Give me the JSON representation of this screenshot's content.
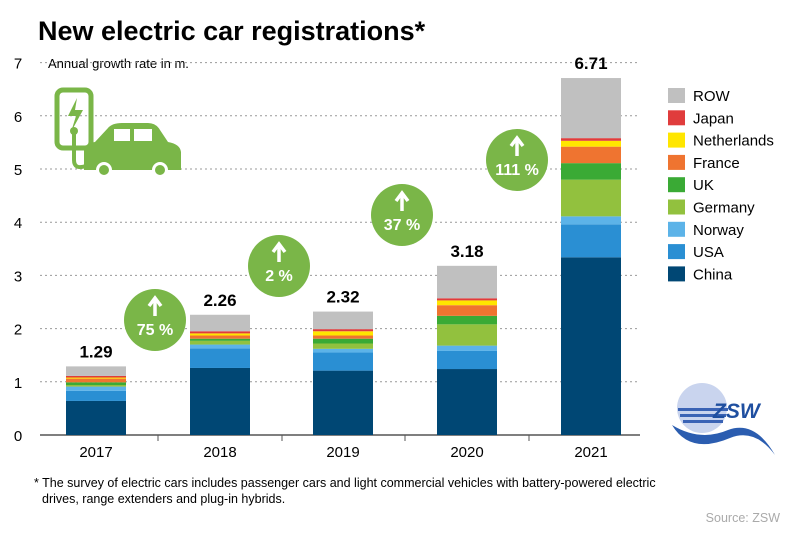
{
  "chart_data": {
    "type": "bar",
    "stacked": true,
    "title": "New electric car registrations*",
    "ylabel": "Annual growth rate in m.",
    "ylim": [
      0,
      7
    ],
    "yticks": [
      "0",
      "1",
      "2",
      "3",
      "4",
      "5",
      "6",
      "7"
    ],
    "grid": true,
    "legend_position": "right",
    "categories": [
      "2017",
      "2018",
      "2019",
      "2020",
      "2021"
    ],
    "totals": [
      "1.29",
      "2.26",
      "2.32",
      "3.18",
      "6.71"
    ],
    "growth": [
      "75 %",
      "2 %",
      "37 %",
      "111 %"
    ],
    "series": [
      {
        "name": "China",
        "color": "#004774",
        "values": [
          0.64,
          1.26,
          1.21,
          1.24,
          3.34
        ]
      },
      {
        "name": "USA",
        "color": "#2a8fd3",
        "values": [
          0.19,
          0.37,
          0.34,
          0.34,
          0.62
        ]
      },
      {
        "name": "Norway",
        "color": "#5cb3e8",
        "values": [
          0.08,
          0.07,
          0.07,
          0.1,
          0.15
        ]
      },
      {
        "name": "Germany",
        "color": "#92c13e",
        "values": [
          0.03,
          0.07,
          0.1,
          0.4,
          0.69
        ]
      },
      {
        "name": "UK",
        "color": "#3aaa35",
        "values": [
          0.05,
          0.04,
          0.09,
          0.16,
          0.31
        ]
      },
      {
        "name": "France",
        "color": "#ef7430",
        "values": [
          0.07,
          0.06,
          0.06,
          0.2,
          0.31
        ]
      },
      {
        "name": "Netherlands",
        "color": "#ffe600",
        "values": [
          0.02,
          0.04,
          0.08,
          0.09,
          0.11
        ]
      },
      {
        "name": "Japan",
        "color": "#e03c3c",
        "values": [
          0.03,
          0.04,
          0.04,
          0.04,
          0.05
        ]
      },
      {
        "name": "ROW",
        "color": "#c0c0c0",
        "values": [
          0.18,
          0.31,
          0.33,
          0.61,
          1.13
        ]
      }
    ]
  },
  "colors": {
    "bubble": "#7ab648",
    "icon": "#7ab648",
    "logo": "#1f4fa0"
  },
  "footnote": {
    "line1": "* The survey of electric cars includes passenger cars and light commercial vehicles with battery-powered electric",
    "line2": "drives, range extenders and plug-in hybrids."
  },
  "source": "Source: ZSW",
  "logo_text": "ZSW",
  "icons": [
    "ev-charger-icon",
    "car-icon",
    "arrow-up-icon"
  ]
}
